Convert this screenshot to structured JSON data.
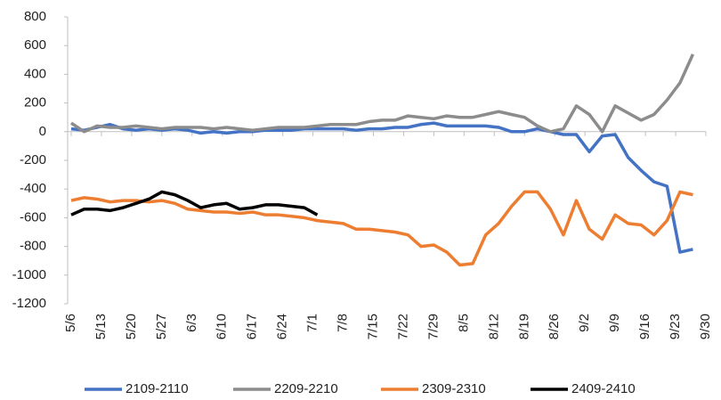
{
  "chart_data": {
    "type": "line",
    "x": [
      0,
      3,
      6,
      9,
      12,
      15,
      18,
      21,
      24,
      27,
      30,
      33,
      36,
      39,
      42,
      45,
      48,
      51,
      54,
      57,
      60,
      63,
      66,
      69,
      72,
      75,
      78,
      81,
      84,
      87,
      90,
      93,
      96,
      99,
      102,
      105,
      108,
      111,
      114,
      117,
      120,
      123,
      126,
      129,
      132,
      135,
      138,
      141,
      144
    ],
    "xlim": [
      0,
      147
    ],
    "xticks": [
      {
        "value": 0,
        "label": "5/6"
      },
      {
        "value": 7,
        "label": "5/13"
      },
      {
        "value": 14,
        "label": "5/20"
      },
      {
        "value": 21,
        "label": "5/27"
      },
      {
        "value": 28,
        "label": "6/3"
      },
      {
        "value": 35,
        "label": "6/10"
      },
      {
        "value": 42,
        "label": "6/17"
      },
      {
        "value": 49,
        "label": "6/24"
      },
      {
        "value": 56,
        "label": "7/1"
      },
      {
        "value": 63,
        "label": "7/8"
      },
      {
        "value": 70,
        "label": "7/15"
      },
      {
        "value": 77,
        "label": "7/22"
      },
      {
        "value": 84,
        "label": "7/29"
      },
      {
        "value": 91,
        "label": "8/5"
      },
      {
        "value": 98,
        "label": "8/12"
      },
      {
        "value": 105,
        "label": "8/19"
      },
      {
        "value": 112,
        "label": "8/26"
      },
      {
        "value": 119,
        "label": "9/2"
      },
      {
        "value": 126,
        "label": "9/9"
      },
      {
        "value": 133,
        "label": "9/16"
      },
      {
        "value": 140,
        "label": "9/23"
      },
      {
        "value": 147,
        "label": "9/30"
      }
    ],
    "ylim": [
      -1200,
      800
    ],
    "yticks": [
      -1200,
      -1000,
      -800,
      -600,
      -400,
      -200,
      0,
      200,
      400,
      600,
      800
    ],
    "series": [
      {
        "name": "2109-2110",
        "color": "#4472c4",
        "values": [
          20,
          10,
          30,
          50,
          20,
          10,
          20,
          10,
          20,
          10,
          -10,
          0,
          -10,
          0,
          0,
          10,
          10,
          10,
          20,
          20,
          20,
          20,
          10,
          20,
          20,
          30,
          30,
          50,
          60,
          40,
          40,
          40,
          40,
          30,
          0,
          0,
          20,
          0,
          -20,
          -20,
          -140,
          -30,
          -20,
          -180,
          -270,
          -350,
          -380,
          -840,
          -820
        ]
      },
      {
        "name": "2209-2210",
        "color": "#8c8c8c",
        "values": [
          60,
          0,
          40,
          30,
          30,
          40,
          30,
          20,
          30,
          30,
          30,
          20,
          30,
          20,
          10,
          20,
          30,
          30,
          30,
          40,
          50,
          50,
          50,
          70,
          80,
          80,
          110,
          100,
          90,
          110,
          100,
          100,
          120,
          140,
          120,
          100,
          40,
          0,
          20,
          180,
          120,
          0,
          180,
          130,
          80,
          120,
          220,
          340,
          540
        ]
      },
      {
        "name": "2309-2310",
        "color": "#ed7d31",
        "values": [
          -480,
          -460,
          -470,
          -490,
          -480,
          -480,
          -490,
          -480,
          -500,
          -540,
          -550,
          -560,
          -560,
          -570,
          -560,
          -580,
          -580,
          -590,
          -600,
          -620,
          -630,
          -640,
          -680,
          -680,
          -690,
          -700,
          -720,
          -800,
          -790,
          -840,
          -930,
          -920,
          -720,
          -640,
          -520,
          -420,
          -420,
          -540,
          -720,
          -480,
          -680,
          -750,
          -580,
          -640,
          -650,
          -720,
          -620,
          -420,
          -440
        ]
      },
      {
        "name": "2409-2410",
        "color": "#000000",
        "values": [
          -580,
          -540,
          -540,
          -550,
          -530,
          -500,
          -470,
          -420,
          -440,
          -480,
          -530,
          -510,
          -500,
          -540,
          -530,
          -510,
          -510,
          -520,
          -530,
          -580,
          null,
          null,
          null,
          null,
          null,
          null,
          null,
          null,
          null,
          null,
          null,
          null,
          null,
          null,
          null,
          null,
          null,
          null,
          null,
          null,
          null,
          null,
          null,
          null,
          null,
          null,
          null,
          null,
          null
        ]
      }
    ]
  }
}
